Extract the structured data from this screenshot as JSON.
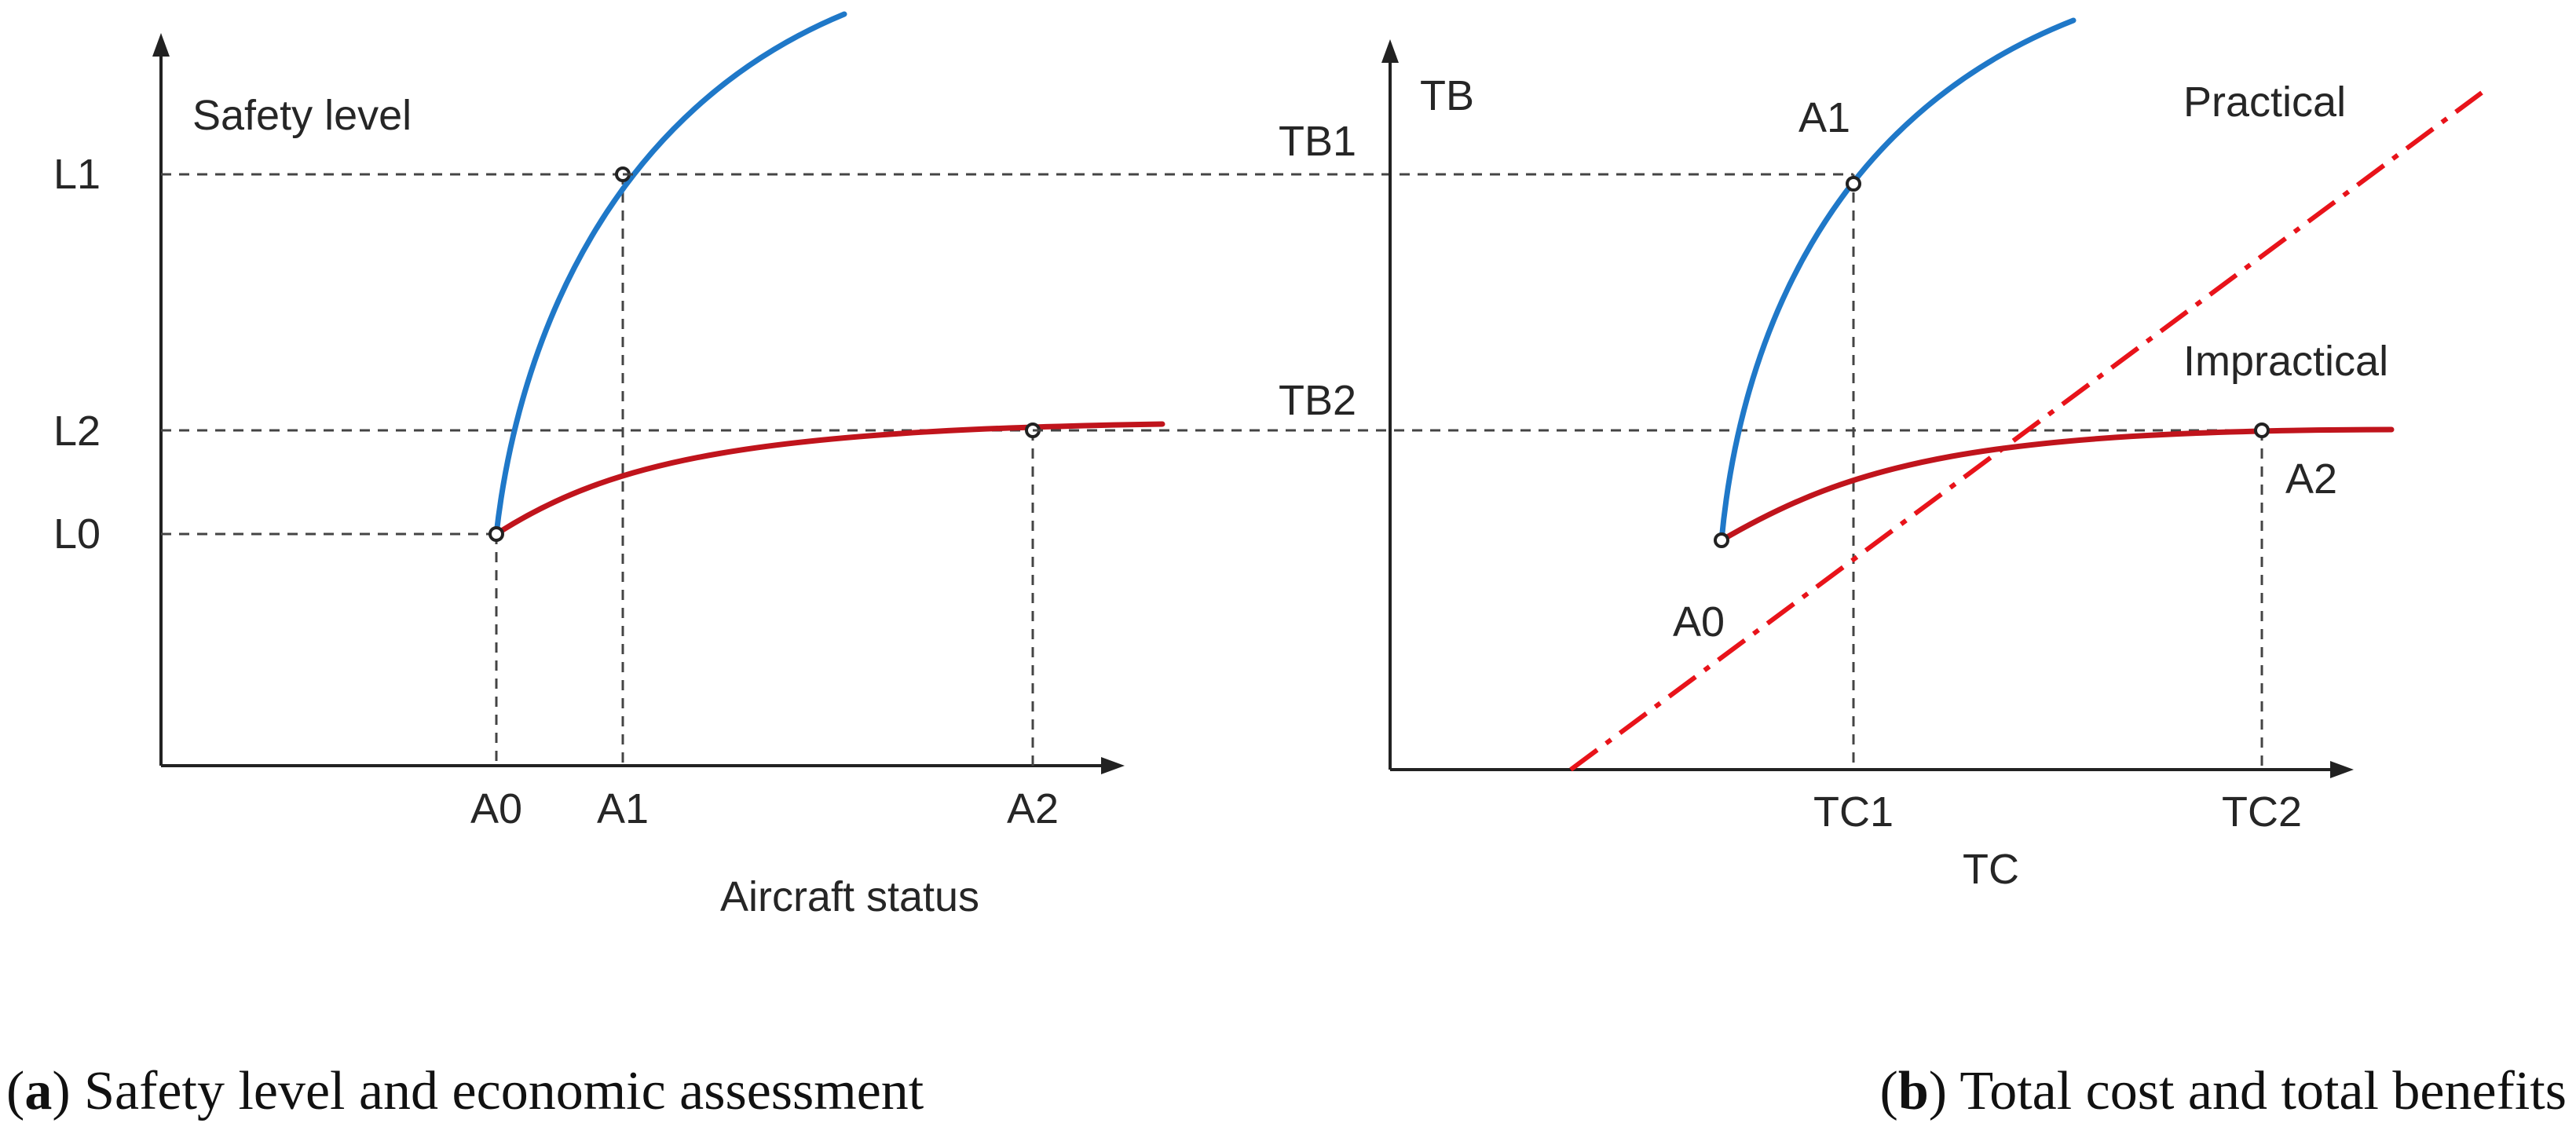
{
  "panel_a": {
    "y_axis_title": "Safety level",
    "x_axis_title": "Aircraft status",
    "y_ticks": [
      "L1",
      "L2",
      "L0"
    ],
    "x_ticks": [
      "A0",
      "A1",
      "A2"
    ],
    "caption_letter": "a",
    "caption_text": "Safety level and economic assessment"
  },
  "panel_b": {
    "y_axis_title": "TB",
    "x_axis_title": "TC",
    "y_ticks": [
      "TB1",
      "TB2"
    ],
    "x_ticks": [
      "TC1",
      "TC2"
    ],
    "point_labels": [
      "A1",
      "A0",
      "A2"
    ],
    "region_labels": [
      "Practical",
      "Impractical"
    ],
    "caption_letter": "b",
    "caption_text": "Total cost and total benefits"
  },
  "colors": {
    "blue_curve": "#1f78c8",
    "red_curve": "#c0141c",
    "diagonal": "#e8131a"
  }
}
